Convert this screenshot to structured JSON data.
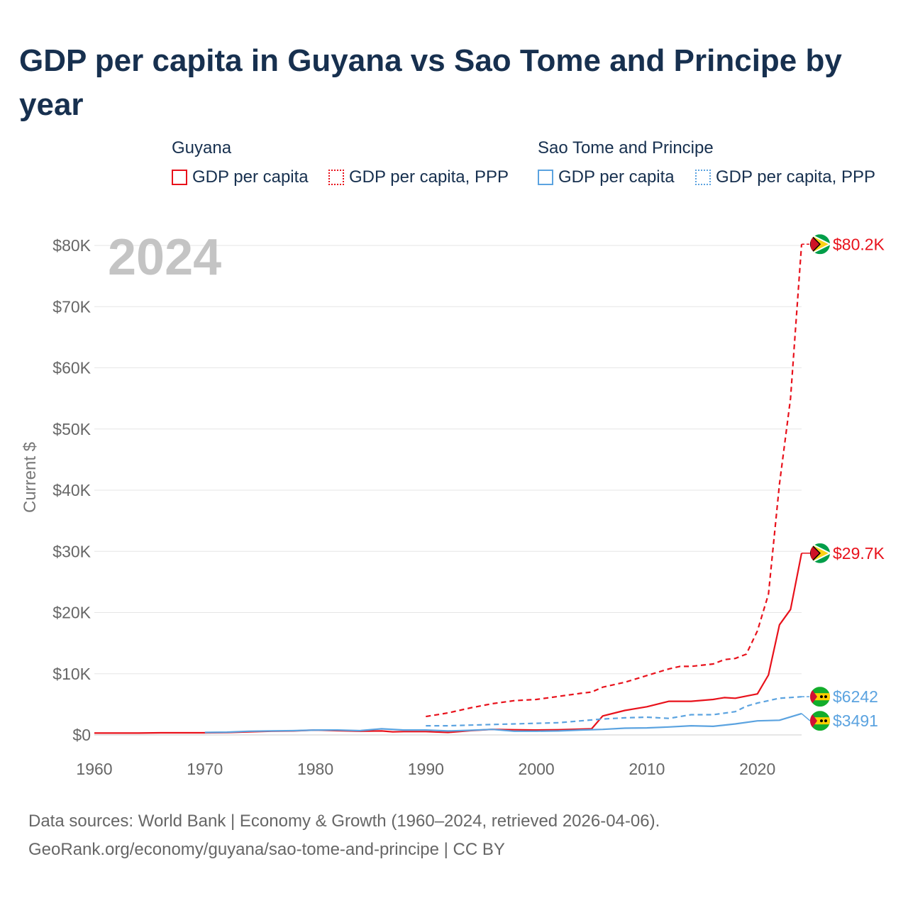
{
  "title": "GDP per capita in Guyana vs Sao Tome and Principe by year",
  "legend": {
    "guyana": {
      "title": "Guyana",
      "gdp": "GDP per capita",
      "ppp": "GDP per capita, PPP",
      "color": "#e8111b"
    },
    "stp": {
      "title": "Sao Tome and Principe",
      "gdp": "GDP per capita",
      "ppp": "GDP per capita, PPP",
      "color": "#5ba3e0"
    }
  },
  "year_label": "2024",
  "footer": {
    "line1": "Data sources: World Bank | Economy & Growth (1960–2024, retrieved 2026-04-06).",
    "line2": "GeoRank.org/economy/guyana/sao-tome-and-principe | CC BY"
  },
  "chart_data": {
    "type": "line",
    "title": "GDP per capita in Guyana vs Sao Tome and Principe by year",
    "xlabel": "",
    "ylabel": "Current $",
    "xlim": [
      1960,
      2024
    ],
    "ylim": [
      0,
      80000
    ],
    "x_ticks": [
      1960,
      1970,
      1980,
      1990,
      2000,
      2010,
      2020
    ],
    "y_ticks": [
      0,
      10000,
      20000,
      30000,
      40000,
      50000,
      60000,
      70000,
      80000
    ],
    "y_tick_labels": [
      "$0",
      "$10K",
      "$20K",
      "$30K",
      "$40K",
      "$50K",
      "$60K",
      "$70K",
      "$80K"
    ],
    "series": [
      {
        "name": "Guyana — GDP per capita",
        "country": "Guyana",
        "style": "solid",
        "color": "#e8111b",
        "end_label": "$29.7K",
        "x": [
          1960,
          1962,
          1964,
          1966,
          1968,
          1970,
          1972,
          1974,
          1976,
          1978,
          1980,
          1982,
          1984,
          1986,
          1987,
          1988,
          1990,
          1992,
          1994,
          1996,
          1998,
          2000,
          2002,
          2004,
          2005,
          2006,
          2008,
          2010,
          2012,
          2014,
          2016,
          2017,
          2018,
          2020,
          2021,
          2022,
          2023,
          2024
        ],
        "y": [
          300,
          300,
          300,
          350,
          350,
          350,
          380,
          500,
          600,
          650,
          800,
          700,
          600,
          650,
          500,
          550,
          550,
          400,
          700,
          900,
          850,
          800,
          850,
          950,
          1000,
          3100,
          4000,
          4600,
          5500,
          5500,
          5800,
          6100,
          6000,
          6700,
          9800,
          18000,
          20500,
          29700
        ]
      },
      {
        "name": "Guyana — GDP per capita, PPP",
        "country": "Guyana",
        "style": "dashed",
        "color": "#e8111b",
        "end_label": "$80.2K",
        "x": [
          1990,
          1992,
          1994,
          1996,
          1998,
          2000,
          2002,
          2004,
          2005,
          2006,
          2008,
          2010,
          2012,
          2013,
          2014,
          2016,
          2017,
          2018,
          2019,
          2020,
          2021,
          2022,
          2023,
          2024
        ],
        "y": [
          3000,
          3600,
          4400,
          5100,
          5600,
          5800,
          6300,
          6800,
          7000,
          7800,
          8600,
          9700,
          10800,
          11200,
          11200,
          11600,
          12300,
          12500,
          13200,
          17000,
          23000,
          41000,
          55000,
          80200
        ]
      },
      {
        "name": "Sao Tome and Principe — GDP per capita",
        "country": "Sao Tome and Principe",
        "style": "solid",
        "color": "#5ba3e0",
        "end_label": "$3491",
        "x": [
          1970,
          1972,
          1974,
          1976,
          1978,
          1980,
          1982,
          1984,
          1986,
          1988,
          1990,
          1992,
          1994,
          1996,
          1998,
          2000,
          2002,
          2004,
          2006,
          2008,
          2010,
          2012,
          2014,
          2016,
          2018,
          2020,
          2022,
          2024
        ],
        "y": [
          400,
          450,
          600,
          650,
          700,
          800,
          800,
          700,
          1000,
          800,
          800,
          650,
          750,
          900,
          600,
          600,
          650,
          800,
          900,
          1100,
          1150,
          1300,
          1500,
          1400,
          1800,
          2300,
          2400,
          3491
        ]
      },
      {
        "name": "Sao Tome and Principe — GDP per capita, PPP",
        "country": "Sao Tome and Principe",
        "style": "dashed",
        "color": "#5ba3e0",
        "end_label": "$6242",
        "x": [
          1990,
          1992,
          1994,
          1996,
          1998,
          2000,
          2002,
          2004,
          2006,
          2008,
          2010,
          2012,
          2014,
          2016,
          2018,
          2019,
          2020,
          2022,
          2024
        ],
        "y": [
          1500,
          1500,
          1600,
          1700,
          1800,
          1900,
          2000,
          2300,
          2600,
          2800,
          2900,
          2700,
          3300,
          3300,
          3800,
          4700,
          5200,
          6000,
          6242
        ]
      }
    ]
  }
}
